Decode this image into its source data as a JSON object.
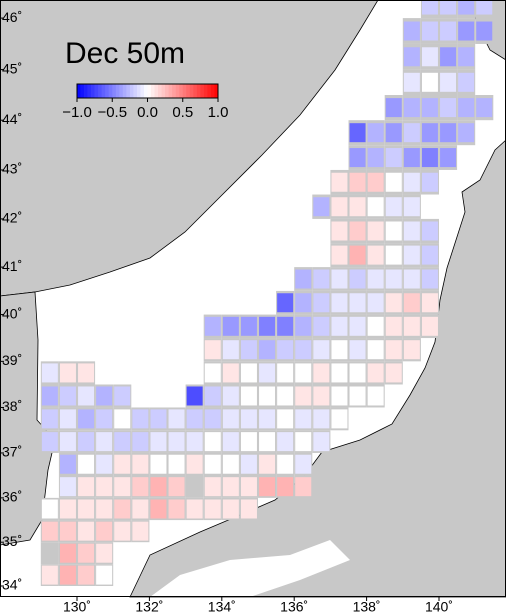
{
  "title": "Dec 50m",
  "colorbar": {
    "clim": [
      -1,
      1
    ],
    "ticks": [
      {
        "value": -1,
        "label": "−1.0"
      },
      {
        "value": -0.5,
        "label": "−0.5"
      },
      {
        "value": 0,
        "label": "0.0"
      },
      {
        "value": 0.5,
        "label": "0.5"
      },
      {
        "value": 1,
        "label": "1.0"
      }
    ]
  },
  "lon_ticks": [
    {
      "value": 130,
      "label": "130˚"
    },
    {
      "value": 132,
      "label": "132˚"
    },
    {
      "value": 134,
      "label": "134˚"
    },
    {
      "value": 136,
      "label": "136˚"
    },
    {
      "value": 138,
      "label": "138˚"
    },
    {
      "value": 140,
      "label": "140˚"
    }
  ],
  "lat_ticks": [
    {
      "value": 34,
      "label": "34˚"
    },
    {
      "value": 35,
      "label": "35˚"
    },
    {
      "value": 36,
      "label": "36˚"
    },
    {
      "value": 37,
      "label": "37˚"
    },
    {
      "value": 38,
      "label": "38˚"
    },
    {
      "value": 39,
      "label": "39˚"
    },
    {
      "value": 40,
      "label": "40˚"
    },
    {
      "value": 41,
      "label": "41˚"
    },
    {
      "value": 42,
      "label": "42˚"
    },
    {
      "value": 43,
      "label": "43˚"
    },
    {
      "value": 44,
      "label": "44˚"
    },
    {
      "value": 45,
      "label": "45˚"
    },
    {
      "value": 46,
      "label": "46˚"
    }
  ],
  "rows": [
    {
      "lat": 46.25,
      "lon": 139.75,
      "values": [
        -0.2,
        -0.2,
        -0.3,
        -0.2
      ]
    },
    {
      "lat": 45.75,
      "lon": 139.25,
      "values": [
        -0.3,
        -0.2,
        -0.2,
        -0.4,
        -0.4
      ]
    },
    {
      "lat": 45.25,
      "lon": 139.25,
      "values": [
        -0.3,
        -0.1,
        -0.4,
        -0.3
      ]
    },
    {
      "lat": 44.75,
      "lon": 139.25,
      "values": [
        -0.1,
        0,
        -0.1,
        -0.2
      ]
    },
    {
      "lat": 44.25,
      "lon": 138.75,
      "values": [
        -0.4,
        -0.3,
        -0.3,
        -0.2,
        -0.3,
        -0.3
      ]
    },
    {
      "lat": 43.75,
      "lon": 137.75,
      "values": [
        -0.6,
        -0.3,
        -0.4,
        -0.2,
        -0.4,
        -0.4,
        -0.3
      ]
    },
    {
      "lat": 43.25,
      "lon": 137.75,
      "values": [
        -0.4,
        -0.3,
        -0.2,
        -0.4,
        -0.5,
        -0.4
      ]
    },
    {
      "lat": 42.75,
      "lon": 137.25,
      "values": [
        0.1,
        0.2,
        0.2,
        0,
        -0.1,
        -0.2
      ]
    },
    {
      "lat": 42.25,
      "lon": 136.75,
      "values": [
        -0.3,
        0.1,
        0.1,
        0,
        -0.1,
        -0.1
      ]
    },
    {
      "lat": 41.75,
      "lon": 137.25,
      "values": [
        0.1,
        0.2,
        0.1,
        0,
        -0.1,
        -0.2
      ]
    },
    {
      "lat": 41.25,
      "lon": 137.25,
      "values": [
        0.1,
        0.3,
        0.1,
        0,
        -0.1,
        -0.2
      ]
    },
    {
      "lat": 40.75,
      "lon": 136.25,
      "values": [
        -0.3,
        -0.2,
        -0.1,
        -0.2,
        -0.1,
        -0.1,
        -0.1,
        -0.2
      ]
    },
    {
      "lat": 40.25,
      "lon": 135.75,
      "values": [
        -0.6,
        -0.3,
        -0.2,
        -0.1,
        -0.1,
        -0.1,
        0.1,
        0.2,
        0.1
      ]
    },
    {
      "lat": 39.75,
      "lon": 133.75,
      "values": [
        -0.3,
        -0.4,
        -0.4,
        -0.5,
        -0.5,
        -0.3,
        -0.2,
        -0.1,
        -0.1,
        0,
        0.1,
        0.1,
        0.1
      ]
    },
    {
      "lat": 39.25,
      "lon": 133.75,
      "values": [
        0.1,
        -0.1,
        -0.2,
        -0.3,
        -0.2,
        -0.2,
        -0.1,
        0,
        -0.1,
        0,
        0.1,
        0.1
      ]
    },
    {
      "lat": 38.75,
      "lon": 129.25,
      "values": [
        -0.1,
        0.1,
        0.1
      ]
    },
    {
      "lat": 38.75,
      "lon": 133.75,
      "values": [
        0,
        0.1,
        0,
        -0.1,
        0,
        0,
        0.1,
        0,
        0,
        0.1,
        0.1
      ]
    },
    {
      "lat": 38.25,
      "lon": 129.25,
      "values": [
        -0.3,
        -0.2,
        -0.1,
        -0.3,
        -0.2
      ]
    },
    {
      "lat": 38.25,
      "lon": 133.25,
      "values": [
        -0.7,
        -0.2,
        -0.1,
        0,
        0,
        0,
        0.1,
        0.1,
        0,
        0,
        0
      ]
    },
    {
      "lat": 37.75,
      "lon": 129.25,
      "values": [
        -0.2,
        -0.1,
        -0.3,
        -0.2,
        0,
        -0.2,
        -0.2,
        -0.1,
        -0.2,
        -0.2,
        -0.1,
        -0.1,
        -0.1,
        0,
        -0.1,
        -0.1,
        0
      ]
    },
    {
      "lat": 37.25,
      "lon": 129.25,
      "values": [
        -0.2,
        -0.1,
        -0.2,
        -0.1,
        -0.2,
        -0.2,
        -0.1,
        -0.1,
        -0.1,
        0,
        -0.1,
        0,
        0,
        -0.1,
        0,
        -0.1
      ]
    },
    {
      "lat": 36.75,
      "lon": 129.75,
      "values": [
        -0.3,
        0,
        -0.1,
        0.1,
        0.1,
        0,
        0,
        0.1,
        0,
        0,
        -0.1,
        0.1,
        0,
        -0.1
      ]
    },
    {
      "lat": 36.25,
      "lon": 129.75,
      "values": [
        -0.1,
        0.1,
        0.1,
        0.1,
        0.2,
        0.3,
        0.2,
        null,
        0.1,
        0.1,
        0.1,
        0.3,
        0.3,
        0.2
      ]
    },
    {
      "lat": 35.75,
      "lon": 129.25,
      "values": [
        0,
        0.1,
        0.1,
        0.1,
        0.2,
        0.1,
        0.3,
        0.2,
        0.1,
        0.1,
        0.1,
        0.1
      ]
    },
    {
      "lat": 35.25,
      "lon": 129.25,
      "values": [
        0.2,
        0.2,
        0.1,
        0.2,
        0.1,
        0.1
      ]
    },
    {
      "lat": 34.75,
      "lon": 129.25,
      "values": [
        null,
        0.3,
        0.2,
        0.1
      ]
    },
    {
      "lat": 34.25,
      "lon": 129.25,
      "values": [
        0.1,
        0.3,
        0.2,
        0
      ]
    }
  ]
}
